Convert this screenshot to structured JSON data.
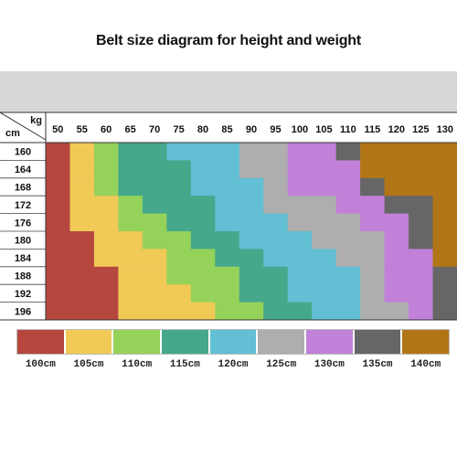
{
  "title": "Belt size diagram for height and weight",
  "chart_data": {
    "type": "heatmap",
    "x_unit_label": "kg",
    "y_unit_label": "cm",
    "x": [
      "50",
      "55",
      "60",
      "65",
      "70",
      "75",
      "80",
      "85",
      "90",
      "95",
      "100",
      "105",
      "110",
      "115",
      "120",
      "125",
      "130"
    ],
    "y": [
      "160",
      "164",
      "168",
      "172",
      "176",
      "180",
      "184",
      "188",
      "192",
      "196"
    ],
    "size_labels": [
      "100cm",
      "105cm",
      "110cm",
      "115cm",
      "120cm",
      "125cm",
      "130cm",
      "135cm",
      "140cm"
    ],
    "size_colors": [
      "#b5473f",
      "#f0c957",
      "#95d25a",
      "#45a88a",
      "#62bfd4",
      "#aeaeae",
      "#c181d8",
      "#666666",
      "#b27516"
    ],
    "size_index_matrix": [
      [
        0,
        1,
        2,
        3,
        3,
        4,
        4,
        4,
        5,
        5,
        6,
        6,
        7,
        8,
        8,
        8,
        8
      ],
      [
        0,
        1,
        2,
        3,
        3,
        3,
        4,
        4,
        5,
        5,
        6,
        6,
        6,
        8,
        8,
        8,
        8
      ],
      [
        0,
        1,
        2,
        3,
        3,
        3,
        4,
        4,
        4,
        5,
        6,
        6,
        6,
        7,
        8,
        8,
        8
      ],
      [
        0,
        1,
        1,
        2,
        3,
        3,
        3,
        4,
        4,
        5,
        5,
        5,
        6,
        6,
        7,
        7,
        8
      ],
      [
        0,
        1,
        1,
        2,
        2,
        3,
        3,
        4,
        4,
        4,
        5,
        5,
        5,
        6,
        6,
        7,
        8
      ],
      [
        0,
        0,
        1,
        1,
        2,
        2,
        3,
        3,
        4,
        4,
        4,
        5,
        5,
        5,
        6,
        7,
        8
      ],
      [
        0,
        0,
        1,
        1,
        1,
        2,
        2,
        3,
        3,
        4,
        4,
        4,
        5,
        5,
        6,
        6,
        8
      ],
      [
        0,
        0,
        0,
        1,
        1,
        2,
        2,
        2,
        3,
        3,
        4,
        4,
        4,
        5,
        6,
        6,
        7
      ],
      [
        0,
        0,
        0,
        1,
        1,
        1,
        2,
        2,
        3,
        3,
        4,
        4,
        4,
        5,
        6,
        6,
        7
      ],
      [
        0,
        0,
        0,
        1,
        1,
        1,
        1,
        2,
        2,
        3,
        3,
        4,
        4,
        5,
        5,
        6,
        7
      ]
    ]
  }
}
